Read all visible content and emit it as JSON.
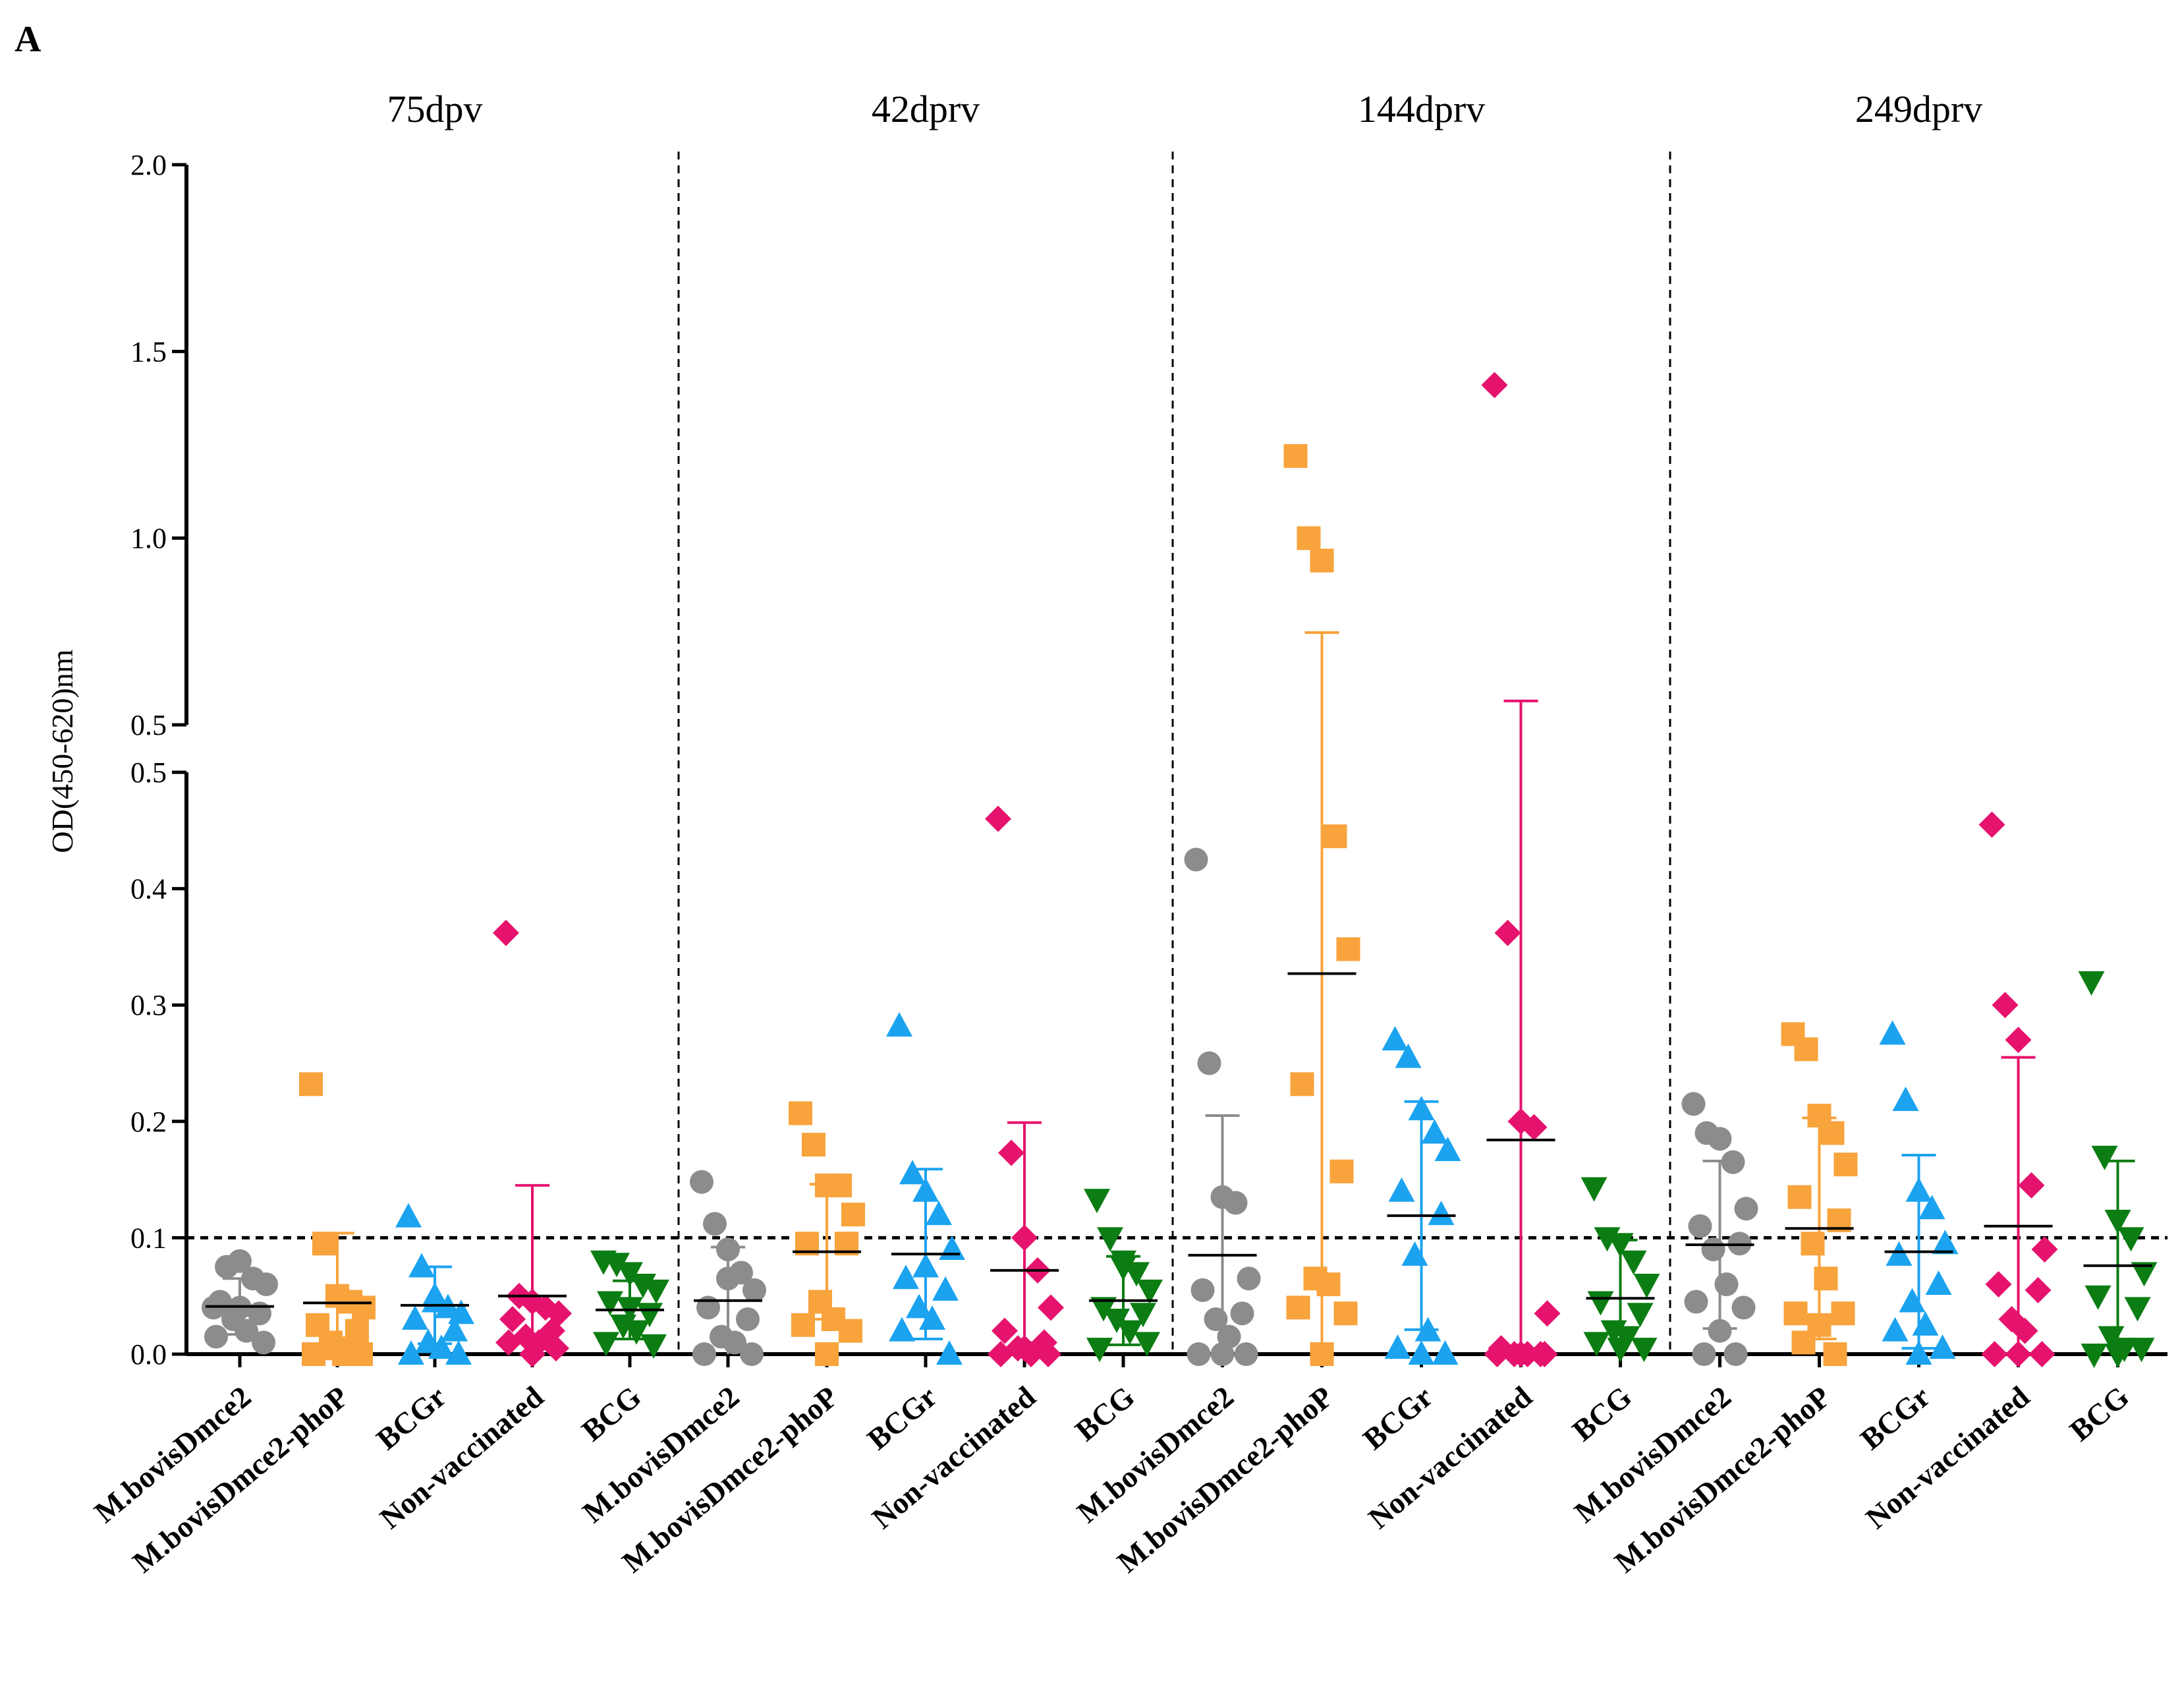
{
  "panel_label": "A",
  "chart_data": {
    "type": "scatter",
    "subtype": "dot plot with mean and SD error bars, broken y-axis",
    "ylabel": "OD(450-620)nm",
    "y_axis": {
      "lower_segment": {
        "range": [
          0.0,
          0.5
        ],
        "ticks": [
          "0.0",
          "0.1",
          "0.2",
          "0.3",
          "0.4",
          "0.5"
        ]
      },
      "upper_segment": {
        "range": [
          0.5,
          2.0
        ],
        "ticks": [
          "0.5",
          "1.0",
          "1.5",
          "2.0"
        ]
      },
      "break_at": 0.5
    },
    "cutoff_line": 0.1,
    "colors": {
      "M.bovisDmce2": "#8c8c8c",
      "M.bovisDmce2-phoP": "#f8a33c",
      "BCGr": "#1ba3f0",
      "Non-vaccinated": "#e6136e",
      "BCG": "#0b7d12"
    },
    "markers": {
      "M.bovisDmce2": "circle",
      "M.bovisDmce2-phoP": "square",
      "BCGr": "triangle-up",
      "Non-vaccinated": "diamond",
      "BCG": "triangle-down"
    },
    "panels": [
      {
        "title": "75dpv",
        "groups": [
          {
            "name": "M.bovisDmce2",
            "points": [
              0.04,
              0.075,
              0.08,
              0.065,
              0.06,
              0.045,
              0.035,
              0.03,
              0.02,
              0.015,
              0.01,
              0.04
            ],
            "mean": 0.041,
            "sd": 0.024
          },
          {
            "name": "M.bovisDmce2-phoP",
            "points": [
              0.232,
              0.095,
              0.05,
              0.045,
              0.04,
              0.025,
              0.02,
              0.01,
              0.0,
              0.0,
              0.0,
              0.005
            ],
            "mean": 0.044,
            "sd": 0.06
          },
          {
            "name": "BCGr",
            "points": [
              0.118,
              0.075,
              0.05,
              0.04,
              0.035,
              0.03,
              0.02,
              0.01,
              0.005,
              0.0,
              0.0,
              0.045
            ],
            "mean": 0.042,
            "sd": 0.033
          },
          {
            "name": "Non-vaccinated",
            "points": [
              0.362,
              0.05,
              0.045,
              0.04,
              0.035,
              0.03,
              0.02,
              0.015,
              0.01,
              0.01,
              0.005,
              0.0
            ],
            "mean": 0.05,
            "sd": 0.095
          },
          {
            "name": "BCG",
            "points": [
              0.08,
              0.078,
              0.07,
              0.06,
              0.055,
              0.045,
              0.035,
              0.025,
              0.02,
              0.01,
              0.008,
              0.04
            ],
            "mean": 0.038,
            "sd": 0.025
          }
        ]
      },
      {
        "title": "42dprv",
        "groups": [
          {
            "name": "M.bovisDmce2",
            "points": [
              0.148,
              0.112,
              0.09,
              0.07,
              0.055,
              0.04,
              0.03,
              0.015,
              0.01,
              0.0,
              0.0,
              0.065
            ],
            "mean": 0.046,
            "sd": 0.046
          },
          {
            "name": "M.bovisDmce2-phoP",
            "points": [
              0.207,
              0.18,
              0.145,
              0.145,
              0.12,
              0.095,
              0.095,
              0.045,
              0.03,
              0.025,
              0.02,
              0.0
            ],
            "mean": 0.088,
            "sd": 0.058
          },
          {
            "name": "BCGr",
            "points": [
              0.282,
              0.155,
              0.14,
              0.12,
              0.09,
              0.065,
              0.055,
              0.04,
              0.03,
              0.02,
              0.0,
              0.075
            ],
            "mean": 0.086,
            "sd": 0.073
          },
          {
            "name": "Non-vaccinated",
            "points": [
              0.46,
              0.173,
              0.1,
              0.072,
              0.04,
              0.02,
              0.01,
              0.005,
              0.0,
              0.0,
              0.0,
              0.005
            ],
            "mean": 0.072,
            "sd": 0.127
          },
          {
            "name": "BCG",
            "points": [
              0.133,
              0.1,
              0.075,
              0.07,
              0.055,
              0.04,
              0.035,
              0.03,
              0.02,
              0.005,
              0.01,
              0.08
            ],
            "mean": 0.046,
            "sd": 0.038
          }
        ]
      },
      {
        "title": "144dprv",
        "groups": [
          {
            "name": "M.bovisDmce2",
            "points": [
              0.425,
              0.25,
              0.135,
              0.13,
              0.065,
              0.055,
              0.035,
              0.03,
              0.015,
              0.0,
              0.0,
              0.0
            ],
            "mean": 0.085,
            "sd": 0.12
          },
          {
            "name": "M.bovisDmce2-phoP",
            "points": [
              1.22,
              1.0,
              0.94,
              0.445,
              0.348,
              0.232,
              0.157,
              0.065,
              0.06,
              0.04,
              0.035,
              0.0
            ],
            "mean": 0.327,
            "sd": 0.42
          },
          {
            "name": "BCGr",
            "points": [
              0.27,
              0.255,
              0.21,
              0.19,
              0.175,
              0.14,
              0.12,
              0.085,
              0.02,
              0.005,
              0.0,
              0.0
            ],
            "mean": 0.119,
            "sd": 0.098
          },
          {
            "name": "Non-vaccinated",
            "points": [
              1.41,
              0.362,
              0.2,
              0.195,
              0.035,
              0.005,
              0.0,
              0.0,
              0.0,
              0.0,
              0.0,
              0.0
            ],
            "mean": 0.184,
            "sd": 0.38
          },
          {
            "name": "BCG",
            "points": [
              0.143,
              0.1,
              0.095,
              0.08,
              0.06,
              0.045,
              0.035,
              0.02,
              0.015,
              0.01,
              0.005,
              0.005
            ],
            "mean": 0.048,
            "sd": 0.05
          }
        ]
      },
      {
        "title": "249dprv",
        "groups": [
          {
            "name": "M.bovisDmce2",
            "points": [
              0.215,
              0.19,
              0.185,
              0.165,
              0.125,
              0.11,
              0.095,
              0.09,
              0.06,
              0.045,
              0.04,
              0.02,
              0.0,
              0.0
            ],
            "mean": 0.094,
            "sd": 0.072
          },
          {
            "name": "M.bovisDmce2-phoP",
            "points": [
              0.275,
              0.262,
              0.205,
              0.19,
              0.163,
              0.135,
              0.115,
              0.095,
              0.065,
              0.035,
              0.035,
              0.025,
              0.01,
              0.0
            ],
            "mean": 0.108,
            "sd": 0.095
          },
          {
            "name": "BCGr",
            "points": [
              0.275,
              0.218,
              0.14,
              0.125,
              0.095,
              0.085,
              0.06,
              0.045,
              0.025,
              0.02,
              0.005,
              0.0
            ],
            "mean": 0.088,
            "sd": 0.083
          },
          {
            "name": "Non-vaccinated",
            "points": [
              0.455,
              0.3,
              0.27,
              0.145,
              0.09,
              0.06,
              0.055,
              0.03,
              0.02,
              0.0,
              0.0,
              0.0
            ],
            "mean": 0.11,
            "sd": 0.145
          },
          {
            "name": "BCG",
            "points": [
              0.32,
              0.17,
              0.115,
              0.1,
              0.07,
              0.05,
              0.04,
              0.015,
              0.005,
              0.0,
              0.005,
              0.0
            ],
            "mean": 0.076,
            "sd": 0.09
          }
        ]
      }
    ]
  }
}
